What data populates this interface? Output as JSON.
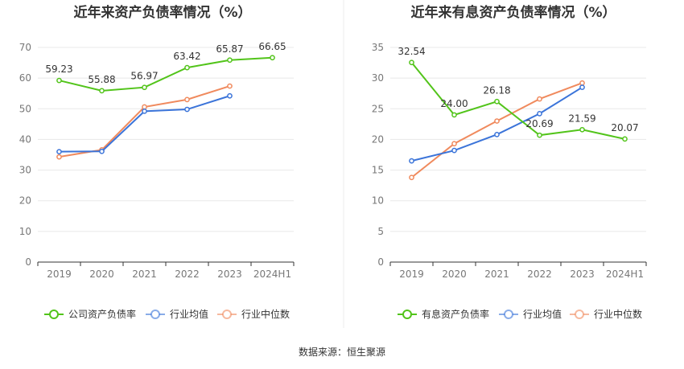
{
  "source_label": "数据来源：恒生聚源",
  "colors": {
    "primary": "#52c41a",
    "average": "#3b74d9",
    "median": "#f08a5d"
  },
  "chart_data": [
    {
      "type": "line",
      "title": "近年来资产负债率情况（%）",
      "categories": [
        "2019",
        "2020",
        "2021",
        "2022",
        "2023",
        "2024H1"
      ],
      "ylim": [
        0,
        70
      ],
      "yticks": [
        0,
        10,
        20,
        30,
        40,
        50,
        60,
        70
      ],
      "grid": true,
      "legend_position": "bottom",
      "series": [
        {
          "name": "公司资产负债率",
          "color": "#52c41a",
          "labels": true,
          "values": [
            59.23,
            55.88,
            56.97,
            63.42,
            65.87,
            66.65
          ]
        },
        {
          "name": "行业均值",
          "color": "#3b74d9",
          "labels": false,
          "values": [
            36.0,
            36.1,
            49.2,
            49.8,
            54.2,
            null
          ]
        },
        {
          "name": "行业中位数",
          "color": "#f08a5d",
          "labels": false,
          "values": [
            34.3,
            36.6,
            50.6,
            53.0,
            57.4,
            null
          ]
        }
      ]
    },
    {
      "type": "line",
      "title": "近年来有息资产负债率情况（%）",
      "categories": [
        "2019",
        "2020",
        "2021",
        "2022",
        "2023",
        "2024H1"
      ],
      "ylim": [
        0,
        35
      ],
      "yticks": [
        0,
        5,
        10,
        15,
        20,
        25,
        30,
        35
      ],
      "grid": true,
      "legend_position": "bottom",
      "series": [
        {
          "name": "有息资产负债率",
          "color": "#52c41a",
          "labels": true,
          "values": [
            32.54,
            24.0,
            26.18,
            20.69,
            21.59,
            20.07
          ]
        },
        {
          "name": "行业均值",
          "color": "#3b74d9",
          "labels": false,
          "values": [
            16.5,
            18.2,
            20.8,
            24.2,
            28.5,
            null
          ]
        },
        {
          "name": "行业中位数",
          "color": "#f08a5d",
          "labels": false,
          "values": [
            13.8,
            19.3,
            23.0,
            26.6,
            29.2,
            null
          ]
        }
      ]
    }
  ]
}
